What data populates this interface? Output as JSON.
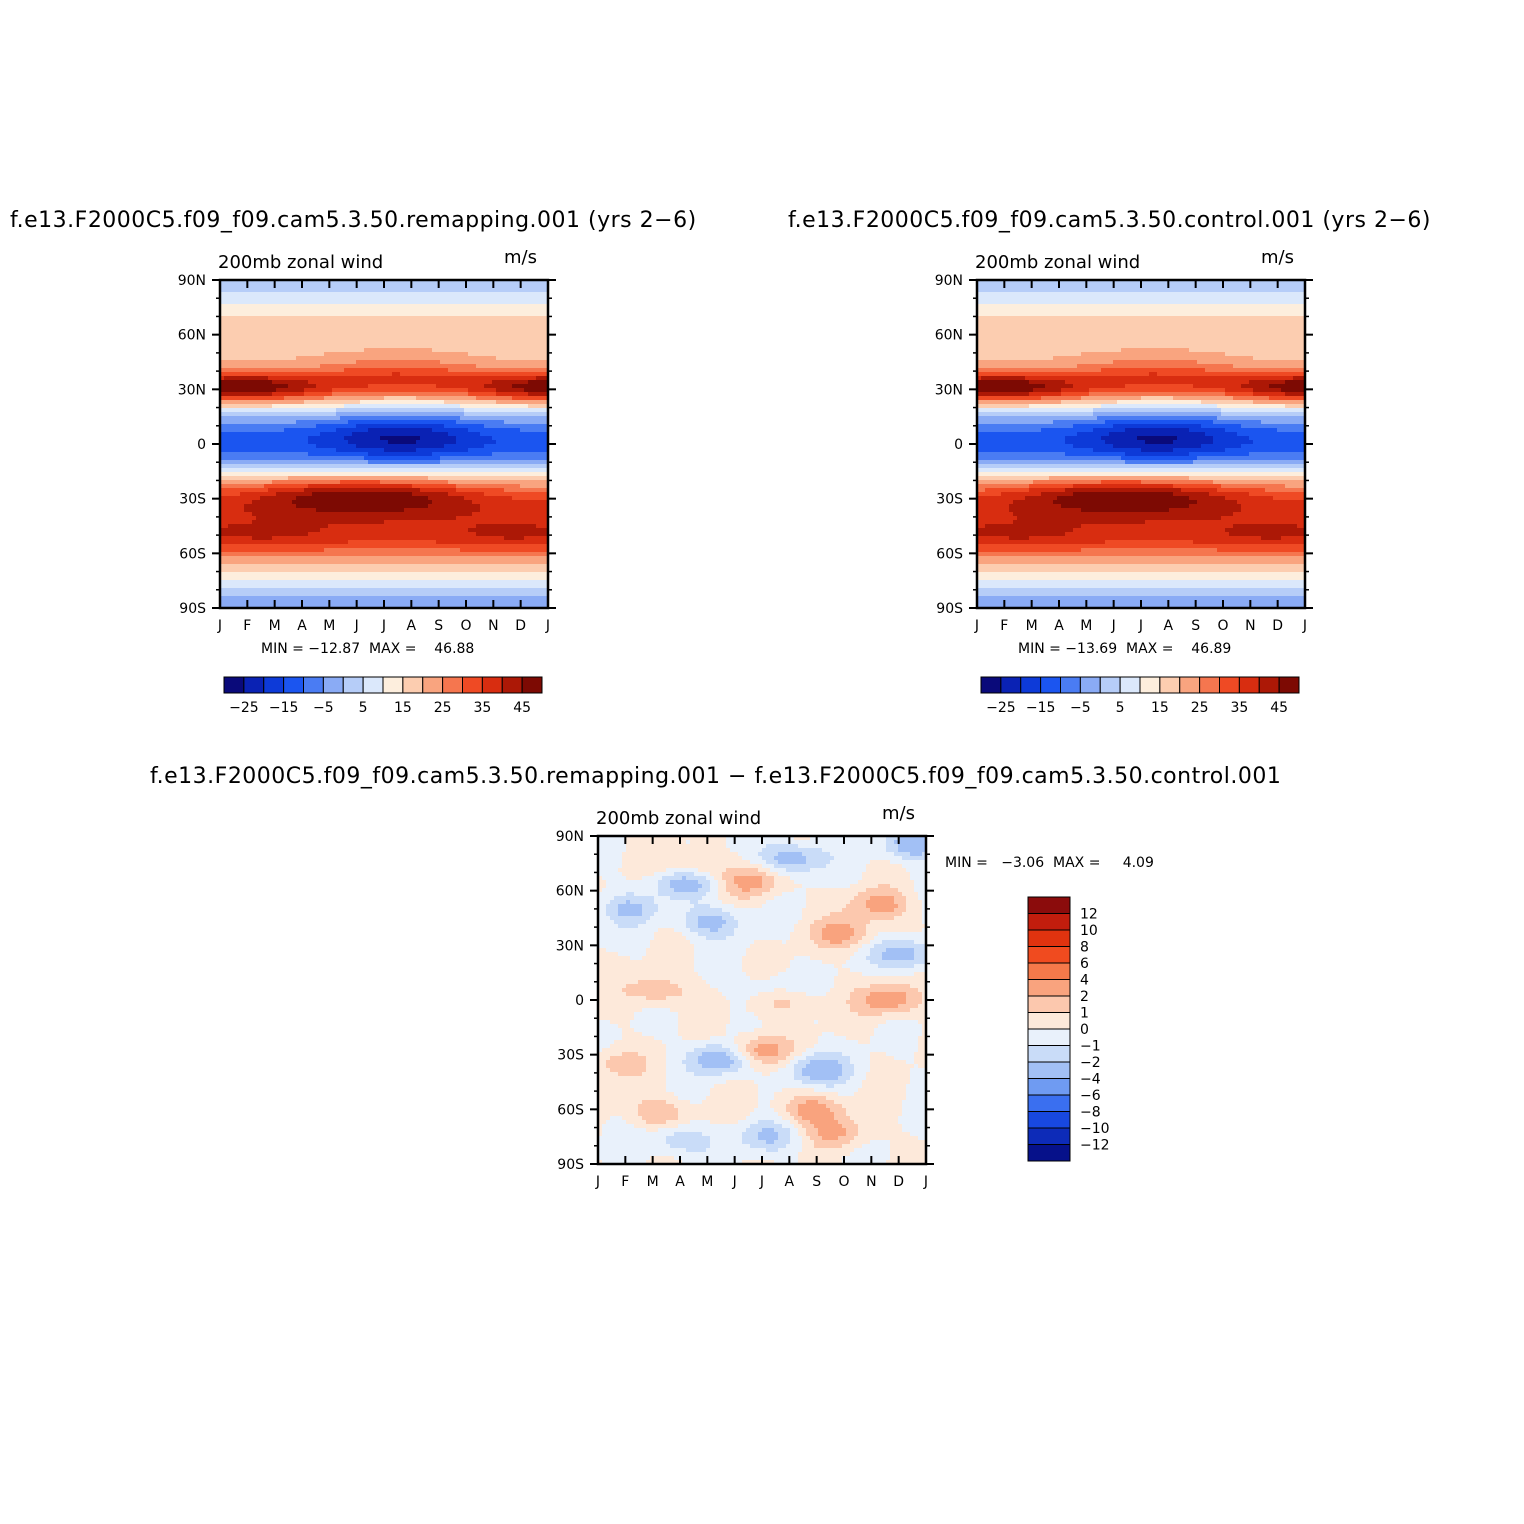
{
  "panels": [
    {
      "title": "f.e13.F2000C5.f09_f09.cam5.3.50.remapping.001  (yrs 2−6)",
      "left_label": "200mb  zonal  wind",
      "right_label": "m/s",
      "stats": "MIN = −12.87  MAX =    46.88"
    },
    {
      "title": "f.e13.F2000C5.f09_f09.cam5.3.50.control.001  (yrs 2−6)",
      "left_label": "200mb  zonal  wind",
      "right_label": "m/s",
      "stats": "MIN = −13.69  MAX =    46.89"
    },
    {
      "title": "f.e13.F2000C5.f09_f09.cam5.3.50.remapping.001  −  f.e13.F2000C5.f09_f09.cam5.3.50.control.001",
      "left_label": "200mb  zonal  wind",
      "right_label": "m/s",
      "stats": "MIN =   −3.06  MAX =     4.09"
    }
  ],
  "chart_data": [
    {
      "type": "heatmap",
      "x_tick_labels": [
        "J",
        "F",
        "M",
        "A",
        "M",
        "J",
        "J",
        "A",
        "S",
        "O",
        "N",
        "D",
        "J"
      ],
      "y_tick_labels": [
        "90N",
        "60N",
        "30N",
        "0",
        "30S",
        "60S",
        "90S"
      ],
      "colorbar": {
        "labels": [
          "−25",
          "−15",
          "−5",
          "5",
          "15",
          "25",
          "35",
          "45"
        ],
        "colors": [
          "#0a0a7a",
          "#0a22b4",
          "#0d3ad8",
          "#1b55f0",
          "#4a7cf3",
          "#8aabf5",
          "#b6cdf8",
          "#dbe8fb",
          "#fdeedd",
          "#fccdb0",
          "#f9a47f",
          "#f5764f",
          "#ef4a24",
          "#d82d10",
          "#ac1806",
          "#7d0a03"
        ]
      }
    },
    {
      "type": "heatmap",
      "x_tick_labels": [
        "J",
        "F",
        "M",
        "A",
        "M",
        "J",
        "J",
        "A",
        "S",
        "O",
        "N",
        "D",
        "J"
      ],
      "y_tick_labels": [
        "90N",
        "60N",
        "30N",
        "0",
        "30S",
        "60S",
        "90S"
      ],
      "colorbar": {
        "labels": [
          "−25",
          "−15",
          "−5",
          "5",
          "15",
          "25",
          "35",
          "45"
        ],
        "colors": [
          "#0a0a7a",
          "#0a22b4",
          "#0d3ad8",
          "#1b55f0",
          "#4a7cf3",
          "#8aabf5",
          "#b6cdf8",
          "#dbe8fb",
          "#fdeedd",
          "#fccdb0",
          "#f9a47f",
          "#f5764f",
          "#ef4a24",
          "#d82d10",
          "#ac1806",
          "#7d0a03"
        ]
      }
    },
    {
      "type": "heatmap",
      "x_tick_labels": [
        "J",
        "F",
        "M",
        "A",
        "M",
        "J",
        "J",
        "A",
        "S",
        "O",
        "N",
        "D",
        "J"
      ],
      "y_tick_labels": [
        "90N",
        "60N",
        "30N",
        "0",
        "30S",
        "60S",
        "90S"
      ],
      "colorbar": {
        "labels": [
          "12",
          "10",
          "8",
          "6",
          "4",
          "2",
          "1",
          "0",
          "−1",
          "−2",
          "−4",
          "−6",
          "−8",
          "−10",
          "−12"
        ],
        "colors": [
          "#8b0c0c",
          "#c21d0d",
          "#e0330f",
          "#f04b1f",
          "#f5794a",
          "#f9a37e",
          "#fcc8ae",
          "#fde9da",
          "#e9f1fb",
          "#c9dcf8",
          "#a2c0f5",
          "#6f9bf2",
          "#3a6ff0",
          "#1848e0",
          "#0d2bb8",
          "#06118a"
        ]
      }
    }
  ]
}
